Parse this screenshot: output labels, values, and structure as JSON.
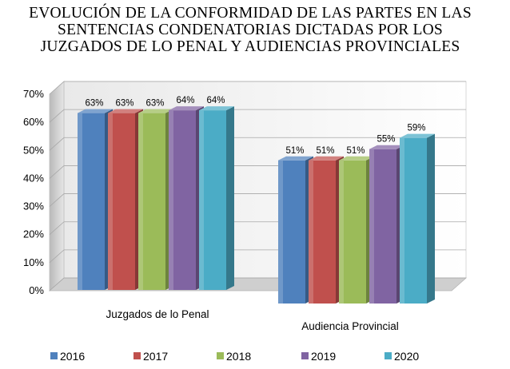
{
  "chart_data": {
    "type": "bar",
    "title_lines": [
      "EVOLUCIÓN DE LA CONFORMIDAD DE LAS PARTES EN LAS",
      "SENTENCIAS CONDENATORIAS DICTADAS POR LOS",
      "JUZGADOS DE LO PENAL Y AUDIENCIAS PROVINCIALES"
    ],
    "categories": [
      "Juzgados de lo Penal",
      "Audiencia Provincial"
    ],
    "series": [
      {
        "name": "2016",
        "values": [
          63,
          51
        ],
        "color": "#4f81bd"
      },
      {
        "name": "2017",
        "values": [
          63,
          51
        ],
        "color": "#c0504d"
      },
      {
        "name": "2018",
        "values": [
          63,
          51
        ],
        "color": "#9bbb59"
      },
      {
        "name": "2019",
        "values": [
          64,
          55
        ],
        "color": "#8064a2"
      },
      {
        "name": "2020",
        "values": [
          64,
          59
        ],
        "color": "#4bacc6"
      }
    ],
    "ylim": [
      0,
      70
    ],
    "yticks": [
      "0%",
      "10%",
      "20%",
      "30%",
      "40%",
      "50%",
      "60%",
      "70%"
    ],
    "data_labels": [
      [
        "63%",
        "51%"
      ],
      [
        "63%",
        "51%"
      ],
      [
        "63%",
        "51%"
      ],
      [
        "64%",
        "55%"
      ],
      [
        "64%",
        "59%"
      ]
    ],
    "legend_position": "bottom",
    "grid": true,
    "style": "3d-column"
  }
}
